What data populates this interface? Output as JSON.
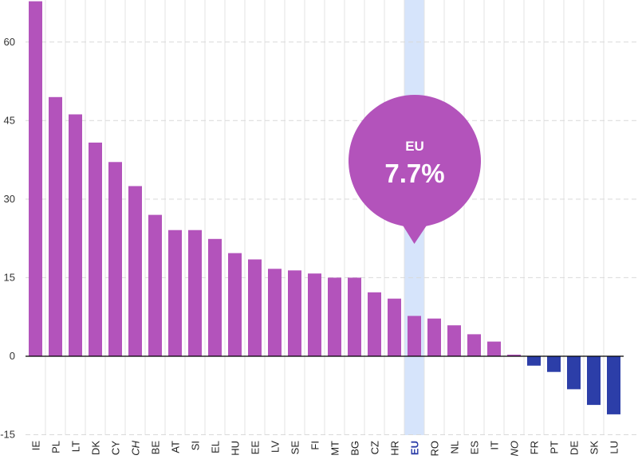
{
  "chart_data": {
    "type": "bar",
    "categories": [
      "IE",
      "PL",
      "LT",
      "DK",
      "CY",
      "CH",
      "BE",
      "AT",
      "SI",
      "EL",
      "HU",
      "EE",
      "LV",
      "SE",
      "FI",
      "MT",
      "BG",
      "CZ",
      "HR",
      "EU",
      "RO",
      "NL",
      "ES",
      "IT",
      "NO",
      "FR",
      "PT",
      "DE",
      "SK",
      "LU"
    ],
    "values": [
      67.8,
      49.5,
      46.2,
      40.8,
      37.1,
      32.5,
      27.0,
      24.1,
      24.1,
      22.4,
      19.7,
      18.5,
      16.7,
      16.4,
      15.8,
      15.0,
      15.0,
      12.2,
      11.0,
      7.7,
      7.2,
      5.9,
      4.2,
      2.8,
      0.3,
      -1.8,
      -3.0,
      -6.3,
      -9.3,
      -11.1
    ],
    "highlight_category": "EU",
    "italic_categories": [
      "CH",
      "NO"
    ],
    "yticks": [
      -15,
      0,
      15,
      30,
      45,
      60
    ],
    "ylim": [
      -15,
      68
    ],
    "grid": true,
    "colors": {
      "positive": "#b353bb",
      "negative": "#2c3ea8",
      "highlight_band": "#d6e4fb",
      "zero_line": "#000000",
      "grid": "#d9d9d9"
    },
    "callout": {
      "label": "EU",
      "value_text": "7.7%"
    }
  }
}
